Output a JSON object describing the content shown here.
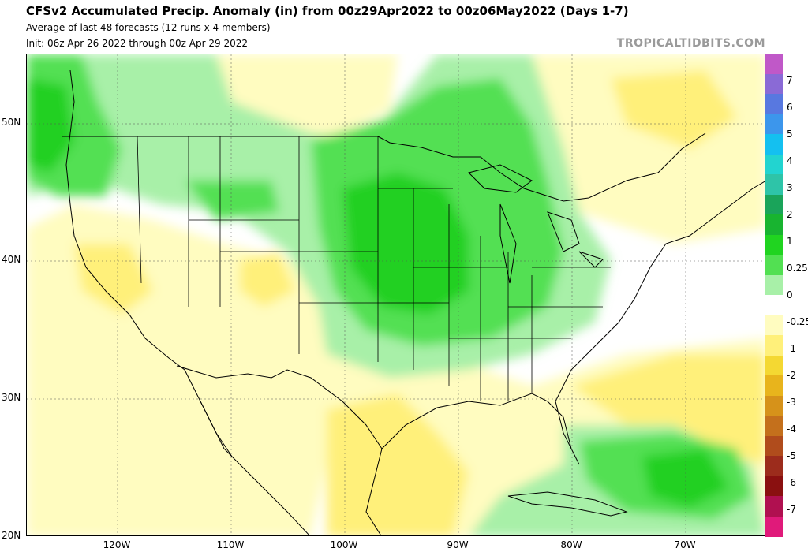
{
  "header": {
    "title": "CFSv2 Accumulated Precip. Anomaly (in) from 00z29Apr2022 to 00z06May2022 (Days 1-7)",
    "subtitle": "Average of last 48 forecasts (12 runs x 4 members)",
    "init": "Init: 06z Apr 26 2022 through 00z Apr 29 2022",
    "site": "TROPICALTIDBITS.COM"
  },
  "axes": {
    "lat_labels": [
      "50N",
      "40N",
      "30N",
      "20N"
    ],
    "lon_labels": [
      "120W",
      "110W",
      "100W",
      "90W",
      "80W",
      "70W"
    ]
  },
  "colorbar": {
    "labels": [
      "7",
      "6",
      "5",
      "4",
      "3",
      "2",
      "1",
      "0.25",
      "0",
      "-0.25",
      "-1",
      "-2",
      "-3",
      "-4",
      "-5",
      "-6",
      "-7"
    ],
    "colors": [
      "#c058c8",
      "#8a6ad6",
      "#5878e0",
      "#3c96ec",
      "#14c0f0",
      "#22d4d0",
      "#2ec4a8",
      "#1aa45a",
      "#18b430",
      "#20d420",
      "#52e052",
      "#a8f0a8",
      "#ffffff",
      "#fffcc0",
      "#fff07a",
      "#f4d832",
      "#e8b41c",
      "#d6921a",
      "#c4701c",
      "#b04c1c",
      "#9c2c1c",
      "#8a1010",
      "#b01050",
      "#e01a7a"
    ],
    "fill": {
      "wet_strong": "#20d020",
      "wet_moderate": "#52e052",
      "wet_light": "#a8f0a8",
      "dry_light": "#fffcc0",
      "dry_moderate": "#fff07a",
      "dry_strong": "#f4d832"
    }
  }
}
